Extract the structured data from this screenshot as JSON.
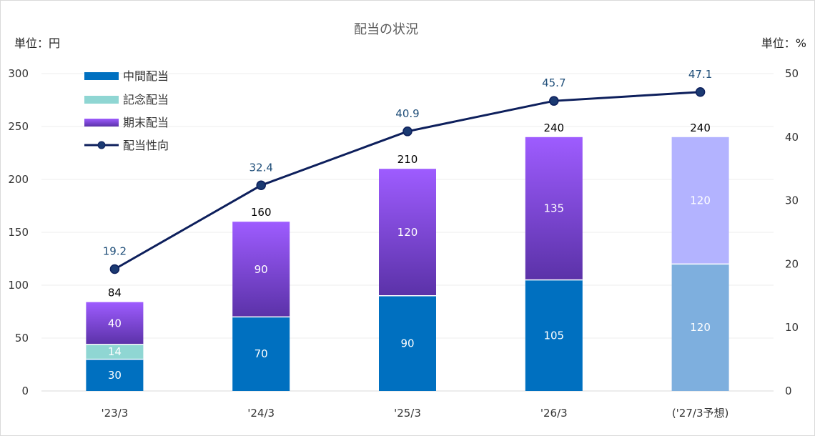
{
  "chart_data": {
    "type": "bar",
    "title": "配当の状況",
    "left_unit": "単位：円",
    "right_unit": "単位：%",
    "categories": [
      "'23/3",
      "'24/3",
      "'25/3",
      "'26/3",
      "('27/3予想)"
    ],
    "ylim": [
      0,
      300
    ],
    "yticks": [
      0,
      50,
      100,
      150,
      200,
      250,
      300
    ],
    "y2lim": [
      0,
      50
    ],
    "y2ticks": [
      0,
      10,
      20,
      30,
      40,
      50
    ],
    "stacked": true,
    "series": [
      {
        "name": "中間配当",
        "values": [
          30,
          70,
          90,
          105,
          120
        ],
        "color": "#0070c0"
      },
      {
        "name": "記念配当",
        "values": [
          14,
          0,
          0,
          0,
          0
        ],
        "color": "#8fd6d3"
      },
      {
        "name": "期末配当",
        "values": [
          40,
          90,
          120,
          135,
          120
        ],
        "color_top": "#9e5cff",
        "color_bottom": "#5b32a8"
      }
    ],
    "forecast_colors": {
      "中間配当": "#7eafde",
      "期末配当": "#b3b3ff"
    },
    "totals": [
      84,
      160,
      210,
      240,
      240
    ],
    "line_series": {
      "name": "配当性向",
      "values": [
        19.2,
        32.4,
        40.9,
        45.7,
        47.1
      ],
      "axis": "right",
      "color": "#0d1f5c"
    },
    "legend": {
      "position": "top-left",
      "entries": [
        "中間配当",
        "記念配当",
        "期末配当",
        "配当性向"
      ]
    },
    "grid": true
  }
}
